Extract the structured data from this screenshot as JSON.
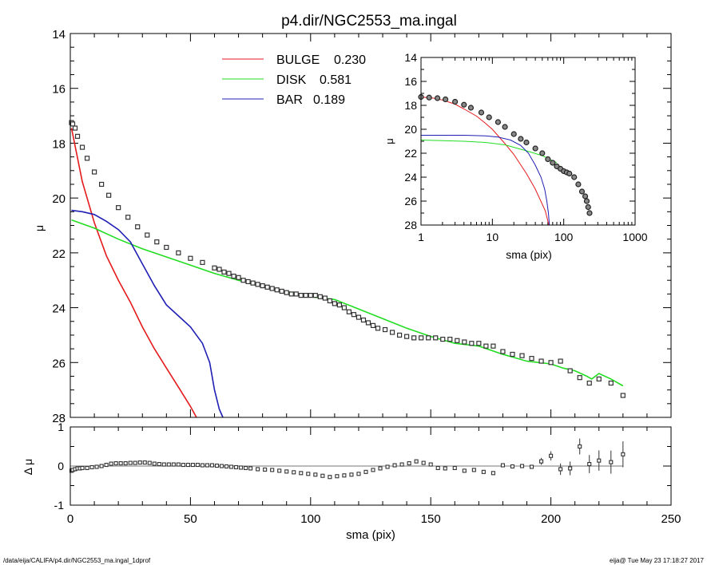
{
  "title": "p4.dir/NGC2553_ma.ingal",
  "footer": {
    "left": "/data/eija/CALIFA/p4.dir/NGC2553_ma.ingal_1dprof",
    "right": "eija@  Tue May 23 17:18:27 2017"
  },
  "colors": {
    "bulge": "#e41a1c",
    "disk": "#22dd22",
    "bar": "#1f1fb4",
    "data": "#333333"
  },
  "chart_data": [
    {
      "type": "line",
      "panel": "main",
      "xlabel": "sma (pix)",
      "ylabel": "μ",
      "xlim": [
        0,
        250
      ],
      "ylim": [
        28,
        14
      ],
      "yinverted": true,
      "xticks": [
        0,
        50,
        100,
        150,
        200,
        250
      ],
      "yticks": [
        14,
        16,
        18,
        20,
        22,
        24,
        26,
        28
      ],
      "legend": {
        "position": "top-center",
        "entries": [
          {
            "name": "BULGE",
            "value": "0.230",
            "color": "#e41a1c"
          },
          {
            "name": "DISK",
            "value": "0.581",
            "color": "#22dd22"
          },
          {
            "name": "BAR",
            "value": "0.189",
            "color": "#1f1fb4"
          }
        ]
      },
      "series": [
        {
          "name": "BULGE",
          "x": [
            0.5,
            2,
            5,
            10,
            15,
            20,
            25,
            30,
            35,
            40,
            45,
            50,
            52.5
          ],
          "y": [
            17.45,
            18.1,
            19.4,
            20.9,
            22.1,
            23.0,
            23.8,
            24.7,
            25.5,
            26.2,
            26.9,
            27.6,
            28.0
          ]
        },
        {
          "name": "DISK",
          "x": [
            0.5,
            10,
            20,
            30,
            40,
            50,
            60,
            70,
            80,
            90,
            100,
            110,
            120,
            130,
            140,
            150,
            160,
            170,
            180,
            190,
            200,
            205,
            210,
            215,
            217,
            220,
            225,
            230
          ],
          "y": [
            20.8,
            21.1,
            21.5,
            21.85,
            22.15,
            22.45,
            22.75,
            23.0,
            23.25,
            23.4,
            23.6,
            23.7,
            24.05,
            24.4,
            24.75,
            25.05,
            25.3,
            25.4,
            25.7,
            25.95,
            26.05,
            26.2,
            26.3,
            26.5,
            26.6,
            26.4,
            26.6,
            26.85
          ]
        },
        {
          "name": "BAR",
          "x": [
            0.5,
            5,
            10,
            15,
            20,
            25,
            30,
            35,
            40,
            45,
            50,
            55,
            58,
            60,
            62,
            63.5
          ],
          "y": [
            20.45,
            20.5,
            20.6,
            20.85,
            21.15,
            21.6,
            22.4,
            23.2,
            23.9,
            24.3,
            24.7,
            25.3,
            26.0,
            27.0,
            27.7,
            28.0
          ]
        },
        {
          "name": "data",
          "x": [
            0.5,
            1,
            2,
            3,
            5,
            7,
            10,
            13,
            16,
            20,
            24,
            28,
            32,
            36,
            40,
            45,
            50,
            55,
            60,
            62,
            64,
            66,
            68,
            70,
            72,
            74,
            76,
            78,
            80,
            82,
            84,
            86,
            88,
            90,
            92,
            94,
            96,
            98,
            100,
            102,
            104,
            106,
            108,
            110,
            112,
            114,
            116,
            118,
            120,
            122,
            124,
            126,
            128,
            131,
            134,
            137,
            140,
            143,
            146,
            149,
            152,
            155,
            158,
            161,
            164,
            167,
            170,
            173,
            176,
            180,
            184,
            188,
            192,
            196,
            200,
            204,
            208,
            212,
            216,
            220,
            225,
            230
          ],
          "y": [
            17.25,
            17.3,
            17.45,
            17.75,
            18.15,
            18.55,
            19.05,
            19.5,
            19.9,
            20.35,
            20.7,
            21.05,
            21.35,
            21.6,
            21.8,
            22.0,
            22.2,
            22.35,
            22.55,
            22.6,
            22.7,
            22.75,
            22.85,
            22.9,
            23.0,
            23.05,
            23.1,
            23.15,
            23.2,
            23.25,
            23.3,
            23.35,
            23.4,
            23.45,
            23.5,
            23.5,
            23.55,
            23.55,
            23.55,
            23.55,
            23.6,
            23.65,
            23.75,
            23.85,
            23.9,
            24.0,
            24.15,
            24.25,
            24.35,
            24.45,
            24.55,
            24.65,
            24.75,
            24.8,
            24.9,
            25.0,
            25.05,
            25.1,
            25.1,
            25.1,
            25.1,
            25.15,
            25.15,
            25.2,
            25.25,
            25.3,
            25.3,
            25.4,
            25.4,
            25.6,
            25.7,
            25.75,
            25.85,
            25.95,
            26.0,
            25.95,
            26.3,
            26.55,
            26.75,
            26.6,
            26.75,
            27.2
          ]
        }
      ]
    },
    {
      "type": "scatter",
      "panel": "residual",
      "xlabel": "sma (pix)",
      "ylabel": "Δ μ",
      "xlim": [
        0,
        250
      ],
      "ylim": [
        -1,
        1
      ],
      "xticks": [
        0,
        50,
        100,
        150,
        200,
        250
      ],
      "yticks": [
        -1,
        0,
        1
      ],
      "zero_line": true,
      "series": [
        {
          "name": "residual",
          "x": [
            0.5,
            1,
            2,
            3,
            4,
            5,
            7,
            9,
            11,
            13,
            15,
            17,
            19,
            21,
            23,
            25,
            27,
            29,
            31,
            33,
            35,
            37,
            39,
            41,
            43,
            45,
            47,
            49,
            51,
            53,
            55,
            57,
            59,
            61,
            63,
            65,
            67,
            69,
            71,
            73,
            75,
            78,
            81,
            84,
            87,
            90,
            93,
            96,
            99,
            102,
            105,
            108,
            111,
            114,
            117,
            120,
            123,
            126,
            129,
            132,
            135,
            138,
            141,
            144,
            147,
            150,
            153,
            156,
            160,
            164,
            168,
            172,
            176,
            180,
            184,
            188,
            192,
            196,
            200,
            204,
            208,
            212,
            216,
            220,
            225,
            230
          ],
          "y": [
            -0.12,
            -0.1,
            -0.08,
            -0.06,
            -0.06,
            -0.05,
            -0.05,
            -0.03,
            -0.02,
            0.0,
            0.03,
            0.06,
            0.07,
            0.07,
            0.07,
            0.08,
            0.08,
            0.09,
            0.09,
            0.08,
            0.06,
            0.05,
            0.04,
            0.04,
            0.04,
            0.04,
            0.03,
            0.03,
            0.03,
            0.03,
            0.02,
            0.02,
            0.02,
            0.01,
            0.0,
            -0.01,
            -0.02,
            -0.03,
            -0.04,
            -0.05,
            -0.06,
            -0.08,
            -0.09,
            -0.1,
            -0.12,
            -0.14,
            -0.16,
            -0.18,
            -0.2,
            -0.22,
            -0.25,
            -0.28,
            -0.26,
            -0.24,
            -0.22,
            -0.2,
            -0.15,
            -0.1,
            -0.06,
            -0.02,
            0.02,
            0.04,
            0.07,
            0.12,
            0.08,
            0.04,
            -0.05,
            -0.06,
            -0.05,
            -0.12,
            -0.1,
            -0.15,
            -0.18,
            0.02,
            -0.01,
            0.0,
            -0.02,
            0.12,
            0.26,
            -0.08,
            -0.06,
            0.5,
            0.05,
            0.14,
            0.1,
            0.3
          ]
        }
      ]
    },
    {
      "type": "line",
      "panel": "inset",
      "xlabel": "sma (pix)",
      "ylabel": "μ",
      "xscale": "log",
      "xlim": [
        1,
        1000
      ],
      "ylim": [
        28,
        14
      ],
      "yinverted": true,
      "xticks": [
        1,
        10,
        100,
        1000
      ],
      "yticks": [
        14,
        16,
        18,
        20,
        22,
        24,
        26,
        28
      ],
      "series": [
        {
          "name": "BULGE",
          "x": [
            1,
            1.5,
            2,
            3,
            4,
            6,
            8,
            10,
            15,
            20,
            30,
            40,
            55,
            62
          ],
          "y": [
            17.3,
            17.4,
            17.55,
            17.9,
            18.3,
            18.9,
            19.5,
            20.0,
            21.2,
            22.1,
            23.7,
            25.0,
            26.8,
            28.0
          ]
        },
        {
          "name": "DISK",
          "x": [
            1,
            2,
            4,
            8,
            15,
            30,
            50,
            80
          ],
          "y": [
            20.9,
            20.95,
            21.0,
            21.1,
            21.3,
            21.8,
            22.2,
            22.8
          ]
        },
        {
          "name": "BAR",
          "x": [
            1,
            2,
            4,
            8,
            12,
            18,
            25,
            32,
            40,
            48,
            54,
            58,
            61,
            63
          ],
          "y": [
            20.5,
            20.5,
            20.5,
            20.55,
            20.65,
            20.9,
            21.35,
            22.0,
            23.0,
            24.0,
            25.0,
            26.0,
            27.0,
            28.0
          ]
        },
        {
          "name": "data",
          "x": [
            1,
            1.3,
            1.7,
            2.2,
            3,
            4,
            5,
            7,
            9,
            12,
            15,
            20,
            25,
            30,
            40,
            50,
            60,
            70,
            80,
            90,
            100,
            110,
            120,
            140,
            160,
            180,
            200,
            210,
            220,
            230
          ],
          "y": [
            17.3,
            17.35,
            17.4,
            17.5,
            17.7,
            17.95,
            18.2,
            18.6,
            19.0,
            19.4,
            19.8,
            20.4,
            20.8,
            21.1,
            21.6,
            22.0,
            22.5,
            22.8,
            23.1,
            23.3,
            23.5,
            23.6,
            23.7,
            24.0,
            24.6,
            25.2,
            25.6,
            26.0,
            26.5,
            27.0
          ]
        }
      ]
    }
  ]
}
